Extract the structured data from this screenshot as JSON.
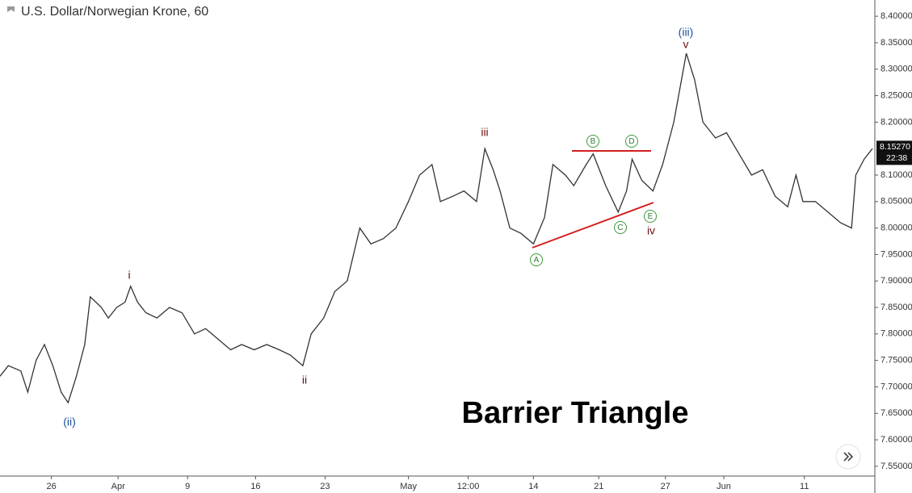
{
  "chart_data": {
    "type": "line",
    "title": "U.S. Dollar/Norwegian Krone, 60",
    "color": "#333333",
    "x": [
      0,
      0.6,
      1.5,
      2.0,
      2.6,
      3.2,
      3.8,
      4.4,
      4.9,
      5.5,
      6.1,
      6.5,
      7.3,
      7.8,
      8.4,
      9.0,
      9.4,
      9.9,
      10.5,
      11.3,
      12.2,
      13.1,
      14.0,
      14.8,
      15.7,
      16.6,
      17.4,
      18.3,
      19.2,
      20.1,
      20.9,
      21.8,
      22.4,
      23.3,
      24.1,
      25.0,
      25.9,
      26.7,
      27.6,
      28.5,
      29.4,
      30.2,
      31.1,
      31.7,
      32.6,
      33.4,
      34.3,
      34.9,
      35.5,
      36.0,
      36.7,
      37.5,
      38.4,
      39.2,
      39.8,
      40.7,
      41.3,
      42.2,
      42.7,
      43.6,
      44.5,
      45.1,
      45.5,
      46.2,
      47.0,
      47.7,
      48.5,
      49.4,
      50.0,
      50.6,
      51.5,
      52.3,
      53.2,
      54.1,
      54.9,
      55.8,
      56.7,
      57.3,
      57.8,
      58.7,
      59.6,
      60.5,
      61.3,
      61.6,
      62.2,
      62.8
    ],
    "values": [
      7.72,
      7.74,
      7.73,
      7.69,
      7.75,
      7.78,
      7.74,
      7.69,
      7.67,
      7.72,
      7.78,
      7.87,
      7.85,
      7.83,
      7.85,
      7.86,
      7.89,
      7.86,
      7.84,
      7.83,
      7.85,
      7.84,
      7.8,
      7.81,
      7.79,
      7.77,
      7.78,
      7.77,
      7.78,
      7.77,
      7.76,
      7.74,
      7.8,
      7.83,
      7.88,
      7.9,
      8.0,
      7.97,
      7.98,
      8.0,
      8.05,
      8.1,
      8.12,
      8.05,
      8.06,
      8.07,
      8.05,
      8.15,
      8.11,
      8.07,
      8.0,
      7.99,
      7.97,
      8.02,
      8.12,
      8.1,
      8.08,
      8.12,
      8.14,
      8.08,
      8.03,
      8.07,
      8.13,
      8.09,
      8.07,
      8.12,
      8.2,
      8.33,
      8.28,
      8.2,
      8.17,
      8.18,
      8.14,
      8.1,
      8.11,
      8.06,
      8.04,
      8.1,
      8.05,
      8.05,
      8.03,
      8.01,
      8.0,
      8.1,
      8.13,
      8.15
    ],
    "xlim": [
      0,
      62.8
    ],
    "xticks": [
      {
        "value": 3.7,
        "label": "26"
      },
      {
        "value": 8.5,
        "label": "Apr"
      },
      {
        "value": 13.5,
        "label": "9"
      },
      {
        "value": 18.4,
        "label": "16"
      },
      {
        "value": 23.4,
        "label": "23"
      },
      {
        "value": 29.4,
        "label": "May"
      },
      {
        "value": 33.7,
        "label": "12:00"
      },
      {
        "value": 38.4,
        "label": "14"
      },
      {
        "value": 43.1,
        "label": "21"
      },
      {
        "value": 47.9,
        "label": "27"
      },
      {
        "value": 52.1,
        "label": "Jun"
      },
      {
        "value": 57.9,
        "label": "11"
      }
    ],
    "ylim": [
      7.53,
      8.42
    ],
    "yticks": [
      {
        "value": 8.4,
        "label": "8.40000"
      },
      {
        "value": 8.35,
        "label": "8.35000"
      },
      {
        "value": 8.3,
        "label": "8.30000"
      },
      {
        "value": 8.25,
        "label": "8.25000"
      },
      {
        "value": 8.2,
        "label": "8.20000"
      },
      {
        "value": 8.1,
        "label": "8.10000"
      },
      {
        "value": 8.05,
        "label": "8.05000"
      },
      {
        "value": 8.0,
        "label": "8.00000"
      },
      {
        "value": 7.95,
        "label": "7.95000"
      },
      {
        "value": 7.9,
        "label": "7.90000"
      },
      {
        "value": 7.85,
        "label": "7.85000"
      },
      {
        "value": 7.8,
        "label": "7.80000"
      },
      {
        "value": 7.75,
        "label": "7.75000"
      },
      {
        "value": 7.7,
        "label": "7.70000"
      },
      {
        "value": 7.65,
        "label": "7.65000"
      },
      {
        "value": 7.6,
        "label": "7.60000"
      },
      {
        "value": 7.55,
        "label": "7.55000"
      }
    ],
    "last_price": {
      "value": 8.1527,
      "label": "8.15270"
    },
    "countdown": "22:38",
    "caption": "Barrier Triangle",
    "wave_labels": [
      "(ii)",
      "i",
      "ii",
      "iii",
      "(iii)",
      "v",
      "iv"
    ],
    "triangle_labels": [
      "A",
      "B",
      "C",
      "D",
      "E"
    ]
  }
}
